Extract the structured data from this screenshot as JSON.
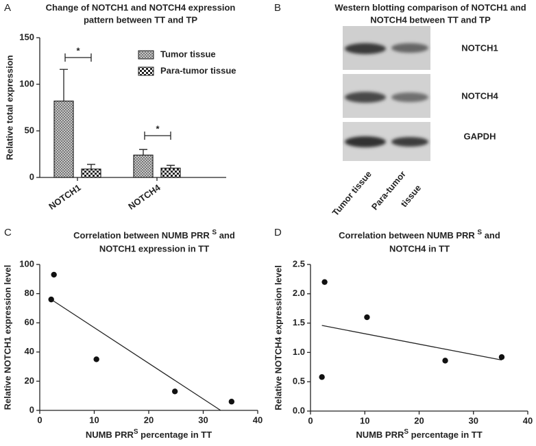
{
  "panel_labels": [
    "A",
    "B",
    "C",
    "D"
  ],
  "chart_data": [
    {
      "type": "bar",
      "title": [
        "Change of NOTCH1 and NOTCH4 expression",
        "pattern between TT and TP"
      ],
      "y_label": "Relative total expression",
      "categories": [
        "NOTCH1",
        "NOTCH4"
      ],
      "series": [
        {
          "name": "Tumor tissue",
          "color": "#bdbdbd",
          "values": [
            82,
            24
          ],
          "errors": [
            34,
            6
          ]
        },
        {
          "name": "Para-tumor tissue",
          "color": "#ffffff",
          "values": [
            9,
            10
          ],
          "errors": [
            5,
            3
          ]
        }
      ],
      "annotations": [
        "*",
        "*"
      ],
      "ylim": [
        0,
        150
      ],
      "yticks": [
        0,
        50,
        100,
        150
      ]
    },
    {
      "type": "blot",
      "title": [
        "Western blotting comparison of NOTCH1 and",
        "NOTCH4 between TT and TP"
      ],
      "bands": [
        "NOTCH1",
        "NOTCH4",
        "GAPDH"
      ],
      "lanes": [
        [
          "Tumor tissue"
        ],
        [
          "Para-tumor",
          "tissue"
        ]
      ]
    },
    {
      "type": "scatter",
      "title": [
        "Correlation between NUMB PRR ",
        "S",
        " and",
        "NOTCH1 expression  in TT"
      ],
      "x_label": [
        "NUMB PRR",
        "S",
        " percentage in TT"
      ],
      "y_label": "Relative NOTCH1 expression level",
      "x": [
        2.6,
        2.1,
        10.4,
        24.8,
        35.2
      ],
      "values": [
        93,
        76,
        35,
        13,
        6
      ],
      "color": "#111111",
      "fit": {
        "x": [
          2.1,
          33.2
        ],
        "y": [
          76,
          0
        ]
      },
      "xlim": [
        0,
        40
      ],
      "xticks": [
        0,
        10,
        20,
        30,
        40
      ],
      "ylim": [
        0,
        100
      ],
      "yticks": [
        0,
        20,
        40,
        60,
        80,
        100
      ]
    },
    {
      "type": "scatter",
      "title": [
        "Correlation between NUMB PRR ",
        "S",
        " and",
        "NOTCH4  in TT"
      ],
      "x_label": [
        "NUMB PRR",
        "S",
        " percentage in TT"
      ],
      "y_label": "Relative NOTCH4 expression level",
      "x": [
        2.6,
        2.1,
        10.4,
        24.8,
        35.2
      ],
      "values": [
        2.2,
        0.58,
        1.6,
        0.86,
        0.92
      ],
      "color": "#111111",
      "fit": {
        "x": [
          2.1,
          35.2
        ],
        "y": [
          1.46,
          0.87
        ]
      },
      "xlim": [
        0,
        40
      ],
      "xticks": [
        0,
        10,
        20,
        30,
        40
      ],
      "ylim": [
        0,
        2.5
      ],
      "yticks": [
        {
          "value": 0,
          "label": "0.0"
        },
        0.5,
        {
          "value": 1,
          "label": "1.0"
        },
        1.5,
        {
          "value": 2,
          "label": "2.0"
        },
        2.5
      ]
    }
  ]
}
